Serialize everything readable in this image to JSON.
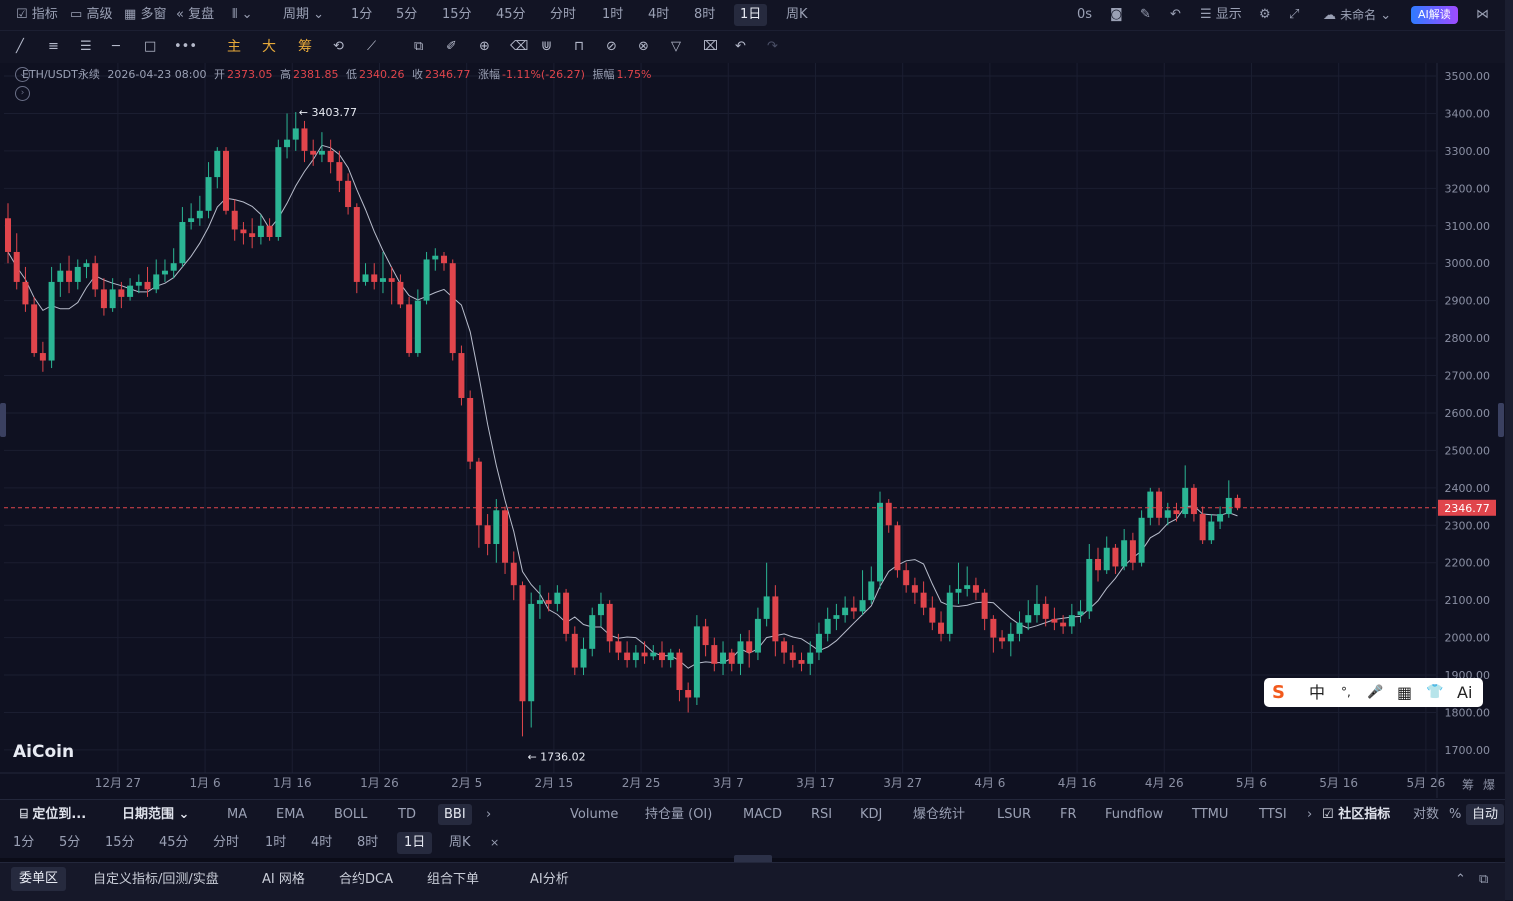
{
  "topbar": {
    "indicators": "指标",
    "advanced": "高级",
    "multi_window": "多窗",
    "replay": "复盘",
    "period_dropdown": "周期",
    "periods": [
      "1分",
      "5分",
      "15分",
      "45分",
      "分时",
      "1时",
      "4时",
      "8时",
      "1日",
      "周K"
    ],
    "selected_period": "1日",
    "latency": "0s",
    "display": "显示",
    "unnamed": "未命名",
    "ai_interpret": "AI解读"
  },
  "toolbar2": {
    "main": "主",
    "big": "大",
    "chip": "筹"
  },
  "infobar": {
    "symbol": "ETH/USDT永续",
    "datetime": "2026-04-23 08:00",
    "open_label": "开",
    "open": "2373.05",
    "high_label": "高",
    "high": "2381.85",
    "low_label": "低",
    "low": "2340.26",
    "close_label": "收",
    "close": "2346.77",
    "change_label": "涨幅",
    "change": "-1.11%(-26.27)",
    "amplitude_label": "振幅",
    "amplitude": "1.75%"
  },
  "watermark": "AiCoin",
  "ime_toolbar": [
    "中",
    "°,",
    "🎤",
    "▦",
    "👕",
    "Ai"
  ],
  "chart_data": {
    "type": "candlestick",
    "ylim": [
      1650,
      3520
    ],
    "y_ticks": [
      "3500.00",
      "3400.00",
      "3300.00",
      "3200.00",
      "3100.00",
      "3000.00",
      "2900.00",
      "2800.00",
      "2700.00",
      "2600.00",
      "2500.00",
      "2400.00",
      "2300.00",
      "2200.00",
      "2100.00",
      "2000.00",
      "1900.00",
      "1800.00",
      "1700.00"
    ],
    "x_ticks": [
      "12月 27",
      "1月 6",
      "1月 16",
      "1月 26",
      "2月 5",
      "2月 15",
      "2月 25",
      "3月 7",
      "3月 17",
      "3月 27",
      "4月 6",
      "4月 16",
      "4月 26",
      "5月 6",
      "5月 16",
      "5月 26"
    ],
    "last_price": "2346.77",
    "high_marker": "3403.77",
    "low_marker": "1736.02",
    "up_color": "#2bb594",
    "down_color": "#e0454c",
    "ma_color": "#b7bccb",
    "candles": [
      [
        3120,
        3030,
        3160,
        3000
      ],
      [
        3030,
        2950,
        3080,
        2930
      ],
      [
        2950,
        2890,
        2990,
        2870
      ],
      [
        2890,
        2760,
        2910,
        2750
      ],
      [
        2760,
        2740,
        2790,
        2710
      ],
      [
        2740,
        2950,
        2990,
        2720
      ],
      [
        2950,
        2980,
        3000,
        2910
      ],
      [
        2980,
        2950,
        3020,
        2920
      ],
      [
        2950,
        2990,
        3010,
        2930
      ],
      [
        2990,
        3000,
        3010,
        2960
      ],
      [
        3000,
        2930,
        3020,
        2910
      ],
      [
        2930,
        2880,
        2960,
        2860
      ],
      [
        2880,
        2930,
        2960,
        2870
      ],
      [
        2930,
        2910,
        2950,
        2880
      ],
      [
        2910,
        2940,
        2960,
        2900
      ],
      [
        2940,
        2950,
        2970,
        2920
      ],
      [
        2950,
        2930,
        2990,
        2910
      ],
      [
        2930,
        2970,
        3010,
        2920
      ],
      [
        2970,
        2980,
        3010,
        2950
      ],
      [
        2980,
        3000,
        3040,
        2960
      ],
      [
        3000,
        3110,
        3150,
        2990
      ],
      [
        3110,
        3120,
        3160,
        3090
      ],
      [
        3120,
        3140,
        3180,
        3100
      ],
      [
        3140,
        3230,
        3270,
        3120
      ],
      [
        3230,
        3300,
        3310,
        3200
      ],
      [
        3300,
        3140,
        3310,
        3130
      ],
      [
        3140,
        3090,
        3170,
        3060
      ],
      [
        3090,
        3080,
        3110,
        3050
      ],
      [
        3080,
        3070,
        3120,
        3040
      ],
      [
        3070,
        3100,
        3130,
        3050
      ],
      [
        3100,
        3070,
        3120,
        3060
      ],
      [
        3070,
        3310,
        3330,
        3060
      ],
      [
        3310,
        3330,
        3400,
        3280
      ],
      [
        3330,
        3360,
        3403.77,
        3300
      ],
      [
        3360,
        3300,
        3380,
        3270
      ],
      [
        3300,
        3290,
        3330,
        3260
      ],
      [
        3290,
        3300,
        3350,
        3270
      ],
      [
        3300,
        3270,
        3330,
        3240
      ],
      [
        3270,
        3220,
        3300,
        3190
      ],
      [
        3220,
        3150,
        3240,
        3130
      ],
      [
        3150,
        2950,
        3160,
        2920
      ],
      [
        2950,
        2970,
        3000,
        2940
      ],
      [
        2970,
        2950,
        3000,
        2930
      ],
      [
        2950,
        2960,
        3030,
        2920
      ],
      [
        2960,
        2950,
        2990,
        2890
      ],
      [
        2950,
        2890,
        2970,
        2880
      ],
      [
        2890,
        2760,
        2910,
        2750
      ],
      [
        2760,
        2900,
        2930,
        2750
      ],
      [
        2900,
        3010,
        3030,
        2890
      ],
      [
        3010,
        3020,
        3040,
        2980
      ],
      [
        3020,
        3000,
        3030,
        2980
      ],
      [
        3000,
        2760,
        3010,
        2740
      ],
      [
        2760,
        2640,
        2780,
        2620
      ],
      [
        2640,
        2470,
        2660,
        2450
      ],
      [
        2470,
        2300,
        2480,
        2240
      ],
      [
        2300,
        2250,
        2330,
        2220
      ],
      [
        2250,
        2340,
        2370,
        2200
      ],
      [
        2340,
        2200,
        2350,
        2170
      ],
      [
        2200,
        2140,
        2230,
        2100
      ],
      [
        2140,
        1830,
        2150,
        1736.02
      ],
      [
        1830,
        2090,
        2120,
        1760
      ],
      [
        2090,
        2100,
        2140,
        2050
      ],
      [
        2100,
        2090,
        2120,
        2070
      ],
      [
        2090,
        2120,
        2140,
        2070
      ],
      [
        2120,
        2010,
        2130,
        1990
      ],
      [
        2010,
        1920,
        2030,
        1900
      ],
      [
        1920,
        1970,
        2000,
        1900
      ],
      [
        1970,
        2060,
        2080,
        1950
      ],
      [
        2060,
        2090,
        2120,
        2030
      ],
      [
        2090,
        1990,
        2100,
        1960
      ],
      [
        1990,
        1960,
        2010,
        1940
      ],
      [
        1960,
        1940,
        1990,
        1920
      ],
      [
        1940,
        1960,
        1980,
        1920
      ],
      [
        1960,
        1950,
        1990,
        1930
      ],
      [
        1950,
        1960,
        1980,
        1940
      ],
      [
        1960,
        1940,
        1990,
        1920
      ],
      [
        1940,
        1960,
        1970,
        1920
      ],
      [
        1960,
        1860,
        1970,
        1830
      ],
      [
        1860,
        1840,
        1880,
        1800
      ],
      [
        1840,
        2030,
        2060,
        1820
      ],
      [
        2030,
        1980,
        2050,
        1950
      ],
      [
        1980,
        1930,
        2000,
        1910
      ],
      [
        1930,
        1960,
        1990,
        1900
      ],
      [
        1960,
        1930,
        1970,
        1910
      ],
      [
        1930,
        1990,
        2010,
        1900
      ],
      [
        1990,
        1960,
        2020,
        1920
      ],
      [
        1960,
        2050,
        2080,
        1940
      ],
      [
        2050,
        2110,
        2200,
        2030
      ],
      [
        2110,
        1990,
        2140,
        1950
      ],
      [
        1990,
        1960,
        2000,
        1930
      ],
      [
        1960,
        1940,
        1980,
        1920
      ],
      [
        1940,
        1930,
        1960,
        1910
      ],
      [
        1930,
        1960,
        1990,
        1900
      ],
      [
        1960,
        2010,
        2040,
        1940
      ],
      [
        2010,
        2050,
        2080,
        1990
      ],
      [
        2050,
        2060,
        2090,
        2020
      ],
      [
        2060,
        2080,
        2110,
        2040
      ],
      [
        2080,
        2070,
        2110,
        2050
      ],
      [
        2070,
        2100,
        2180,
        2060
      ],
      [
        2100,
        2150,
        2190,
        2090
      ],
      [
        2150,
        2360,
        2390,
        2130
      ],
      [
        2360,
        2300,
        2370,
        2280
      ],
      [
        2300,
        2180,
        2310,
        2160
      ],
      [
        2180,
        2140,
        2200,
        2120
      ],
      [
        2140,
        2120,
        2160,
        2090
      ],
      [
        2120,
        2080,
        2150,
        2060
      ],
      [
        2080,
        2040,
        2110,
        2020
      ],
      [
        2040,
        2010,
        2070,
        1990
      ],
      [
        2010,
        2120,
        2140,
        1990
      ],
      [
        2120,
        2130,
        2200,
        2090
      ],
      [
        2130,
        2140,
        2190,
        2110
      ],
      [
        2140,
        2120,
        2160,
        2100
      ],
      [
        2120,
        2050,
        2130,
        2020
      ],
      [
        2050,
        2000,
        2060,
        1960
      ],
      [
        2000,
        1990,
        2020,
        1970
      ],
      [
        1990,
        2010,
        2040,
        1950
      ],
      [
        2010,
        2040,
        2070,
        1990
      ],
      [
        2040,
        2060,
        2100,
        2020
      ],
      [
        2060,
        2090,
        2140,
        2040
      ],
      [
        2090,
        2050,
        2110,
        2030
      ],
      [
        2050,
        2040,
        2080,
        2020
      ],
      [
        2040,
        2030,
        2060,
        2010
      ],
      [
        2030,
        2060,
        2090,
        2010
      ],
      [
        2060,
        2070,
        2100,
        2040
      ],
      [
        2070,
        2210,
        2250,
        2050
      ],
      [
        2210,
        2180,
        2240,
        2150
      ],
      [
        2180,
        2240,
        2270,
        2170
      ],
      [
        2240,
        2190,
        2250,
        2170
      ],
      [
        2190,
        2260,
        2290,
        2180
      ],
      [
        2260,
        2200,
        2280,
        2180
      ],
      [
        2200,
        2320,
        2340,
        2190
      ],
      [
        2320,
        2390,
        2400,
        2300
      ],
      [
        2390,
        2320,
        2400,
        2300
      ],
      [
        2320,
        2340,
        2360,
        2300
      ],
      [
        2340,
        2330,
        2360,
        2310
      ],
      [
        2330,
        2400,
        2460,
        2320
      ],
      [
        2400,
        2330,
        2410,
        2310
      ],
      [
        2330,
        2260,
        2350,
        2250
      ],
      [
        2260,
        2310,
        2330,
        2250
      ],
      [
        2310,
        2330,
        2350,
        2290
      ],
      [
        2330,
        2373.05,
        2420,
        2320
      ],
      [
        2373.05,
        2346.77,
        2381.85,
        2340.26
      ]
    ]
  },
  "indicator_bar": {
    "locate": "定位到...",
    "date_range": "日期范围",
    "main_indicators": [
      "MA",
      "EMA",
      "BOLL",
      "TD",
      "BBI"
    ],
    "selected_main": "BBI",
    "sub_indicators": [
      "Volume",
      "持仓量 (OI)",
      "MACD",
      "RSI",
      "KDJ",
      "爆仓统计",
      "LSUR",
      "FR",
      "Fundflow",
      "TTMU",
      "TTSI"
    ],
    "community": "社区指标",
    "log_scale": "对数",
    "percent": "%",
    "auto": "自动"
  },
  "period_bar": {
    "items": [
      "1分",
      "5分",
      "15分",
      "45分",
      "分时",
      "1时",
      "4时",
      "8时",
      "1日",
      "周K"
    ],
    "selected": "1日",
    "close": "×"
  },
  "bottom_panel": {
    "tabs": [
      "委单区",
      "自定义指标/回测/实盘",
      "AI 网格",
      "合约DCA",
      "组合下单",
      "AI分析"
    ],
    "selected": "委单区"
  },
  "axis_corner": {
    "chip": "筹",
    "liq": "爆"
  }
}
